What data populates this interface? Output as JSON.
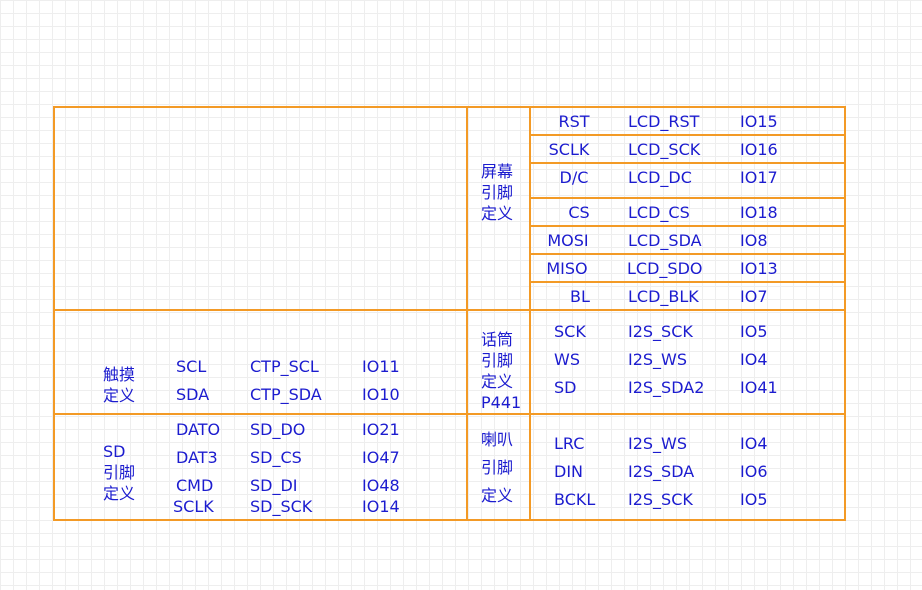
{
  "screen_pins": {
    "label": [
      "屏幕",
      "引脚",
      "定义"
    ],
    "rows": [
      [
        "RST",
        "LCD_RST",
        "IO15"
      ],
      [
        "SCLK",
        "LCD_SCK",
        "IO16"
      ],
      [
        "D/C",
        "LCD_DC",
        "IO17"
      ],
      [
        "CS",
        "LCD_CS",
        "IO18"
      ],
      [
        "MOSI",
        "LCD_SDA",
        "IO8"
      ],
      [
        "MISO",
        "LCD_SDO",
        "IO13"
      ],
      [
        "BL",
        "LCD_BLK",
        "IO7"
      ]
    ]
  },
  "touch_pins": {
    "label": [
      "触摸",
      "定义"
    ],
    "rows": [
      [
        "SCL",
        "CTP_SCL",
        "IO11"
      ],
      [
        "SDA",
        "CTP_SDA",
        "IO10"
      ]
    ]
  },
  "mic_pins": {
    "label": [
      "话筒",
      "引脚",
      "定义",
      "P441"
    ],
    "rows": [
      [
        "SCK",
        "I2S_SCK",
        "IO5"
      ],
      [
        "WS",
        "I2S_WS",
        "IO4"
      ],
      [
        "SD",
        "I2S_SDA2",
        "IO41"
      ]
    ]
  },
  "sd_pins": {
    "label": [
      "SD",
      "引脚",
      "定义"
    ],
    "rows": [
      [
        "DATO",
        "SD_DO",
        "IO21"
      ],
      [
        "DAT3",
        "SD_CS",
        "IO47"
      ],
      [
        "CMD",
        "SD_DI",
        "IO48"
      ],
      [
        "SCLK",
        "SD_SCK",
        "IO14"
      ]
    ]
  },
  "speaker_pins": {
    "label": [
      "喇叭",
      "引脚",
      "定义"
    ],
    "rows": [
      [
        "LRC",
        "I2S_WS",
        "IO4"
      ],
      [
        "DIN",
        "I2S_SDA",
        "IO6"
      ],
      [
        "BCKL",
        "I2S_SCK",
        "IO5"
      ]
    ]
  }
}
